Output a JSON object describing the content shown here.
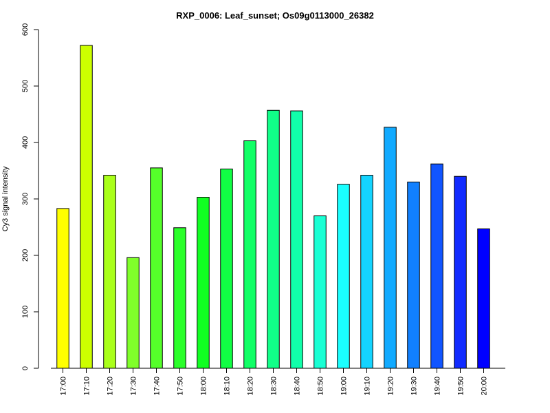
{
  "chart_data": {
    "type": "bar",
    "title": "RXP_0006: Leaf_sunset; Os09g0113000_26382",
    "xlabel": "",
    "ylabel": "Cy3 signal intensity",
    "ylim": [
      0,
      600
    ],
    "yticks": [
      0,
      100,
      200,
      300,
      400,
      500,
      600
    ],
    "grid": false,
    "categories": [
      "17:00",
      "17:10",
      "17:20",
      "17:30",
      "17:40",
      "17:50",
      "18:00",
      "18:10",
      "18:20",
      "18:30",
      "18:40",
      "18:50",
      "19:00",
      "19:10",
      "19:20",
      "19:30",
      "19:40",
      "19:50",
      "20:00"
    ],
    "values": [
      283,
      572,
      342,
      196,
      355,
      249,
      303,
      353,
      403,
      457,
      456,
      270,
      326,
      342,
      427,
      330,
      362,
      340,
      247
    ],
    "colors": [
      "#ffff00",
      "#ccff00",
      "#aaff1a",
      "#80ff2a",
      "#55ff2a",
      "#2bff2a",
      "#11ff22",
      "#11ff44",
      "#11ff66",
      "#11ff88",
      "#11ffaa",
      "#1affd4",
      "#1affff",
      "#14d4ff",
      "#11aaff",
      "#1180ff",
      "#1155ff",
      "#112bff",
      "#0000ff"
    ]
  }
}
